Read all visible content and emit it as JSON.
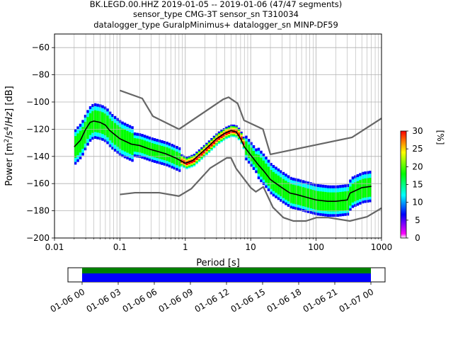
{
  "figure": {
    "title_lines": [
      "BK.LEGD.00.HHZ   2019-01-05 -- 2019-01-06  (47/47 segments)",
      "sensor_type CMG-3T sensor_sn T310034",
      "datalogger_type GuralpMinimus+ datalogger_sn MINP-DF59"
    ]
  },
  "chart_data": [
    {
      "type": "heatmap",
      "title": "BK.LEGD.00.HHZ   2019-01-05 -- 2019-01-06  (47/47 segments)",
      "xlabel": "Period [s]",
      "ylabel": "Power [m²/s⁴/Hz] [dB]",
      "x_scale": "log",
      "xlim": [
        0.01,
        1000
      ],
      "ylim": [
        -200,
        -50
      ],
      "x_ticks": [
        0.01,
        0.1,
        1,
        10,
        100,
        1000
      ],
      "x_tick_labels": [
        "0.01",
        "0.1",
        "1",
        "10",
        "100",
        "1000"
      ],
      "y_ticks": [
        -200,
        -180,
        -160,
        -140,
        -120,
        -100,
        -80,
        -60
      ],
      "y_tick_labels": [
        "−200",
        "−180",
        "−160",
        "−140",
        "−120",
        "−100",
        "−80",
        "−60"
      ],
      "grid": true,
      "colorbar": {
        "label": "[%]",
        "range": [
          0,
          30
        ],
        "ticks": [
          0,
          5,
          10,
          15,
          20,
          25,
          30
        ],
        "tick_labels": [
          "0",
          "5",
          "10",
          "15",
          "20",
          "25",
          "30"
        ],
        "colors": [
          "#ffffff",
          "#ff00ff",
          "#0000ff",
          "#00ffff",
          "#00ff00",
          "#ffff00",
          "#ff8000",
          "#ff0000"
        ]
      },
      "series": [
        {
          "role": "mean",
          "color": "#000000",
          "points": [
            [
              0.02,
              -133
            ],
            [
              0.025,
              -128
            ],
            [
              0.03,
              -120
            ],
            [
              0.035,
              -115
            ],
            [
              0.04,
              -114
            ],
            [
              0.05,
              -115
            ],
            [
              0.06,
              -117
            ],
            [
              0.07,
              -121
            ],
            [
              0.1,
              -127
            ],
            [
              0.15,
              -131
            ],
            [
              0.2,
              -132
            ],
            [
              0.3,
              -135
            ],
            [
              0.5,
              -138
            ],
            [
              0.7,
              -141
            ],
            [
              1.0,
              -145
            ],
            [
              1.3,
              -143
            ],
            [
              2,
              -135
            ],
            [
              3,
              -127
            ],
            [
              4,
              -123
            ],
            [
              5,
              -121
            ],
            [
              6,
              -122
            ],
            [
              7,
              -127
            ],
            [
              8,
              -133
            ],
            [
              10,
              -139
            ],
            [
              13,
              -146
            ],
            [
              16,
              -151
            ],
            [
              20,
              -157
            ],
            [
              30,
              -163
            ],
            [
              40,
              -167
            ],
            [
              50,
              -168
            ],
            [
              70,
              -170
            ],
            [
              100,
              -172
            ],
            [
              150,
              -173
            ],
            [
              200,
              -173
            ],
            [
              300,
              -172
            ],
            [
              330,
              -167
            ],
            [
              500,
              -163
            ],
            [
              700,
              -162
            ]
          ]
        },
        {
          "role": "noise_model_high",
          "color": "#666666",
          "points": [
            [
              0.1,
              -91.5
            ],
            [
              0.22,
              -97.4
            ],
            [
              0.32,
              -110.5
            ],
            [
              0.8,
              -120
            ],
            [
              3.8,
              -98
            ],
            [
              4.6,
              -96.5
            ],
            [
              6.3,
              -101
            ],
            [
              7.9,
              -113.5
            ],
            [
              15.4,
              -120
            ],
            [
              20,
              -138.5
            ],
            [
              354,
              -126
            ],
            [
              1000,
              -112
            ]
          ]
        },
        {
          "role": "noise_model_low",
          "color": "#666666",
          "points": [
            [
              0.1,
              -168
            ],
            [
              0.17,
              -166.7
            ],
            [
              0.4,
              -166.7
            ],
            [
              0.8,
              -169.2
            ],
            [
              1.24,
              -163.7
            ],
            [
              2.4,
              -148.6
            ],
            [
              4.3,
              -141.1
            ],
            [
              5,
              -141.1
            ],
            [
              6,
              -149
            ],
            [
              10,
              -163
            ],
            [
              12,
              -166
            ],
            [
              15.6,
              -162.4
            ],
            [
              21.9,
              -177.5
            ],
            [
              31.6,
              -185
            ],
            [
              45,
              -187.5
            ],
            [
              70,
              -187.5
            ],
            [
              101,
              -185
            ],
            [
              154,
              -185
            ],
            [
              328,
              -187.5
            ],
            [
              600,
              -184.4
            ],
            [
              1000,
              -178
            ]
          ]
        }
      ]
    },
    {
      "type": "timeline",
      "tick_labels": [
        "01-06 00",
        "01-06 03",
        "01-06 06",
        "01-06 09",
        "01-06 12",
        "01-06 15",
        "01-06 18",
        "01-06 21",
        "01-07 00"
      ],
      "coverage_start": "01-06 00",
      "coverage_end": "01-07 00",
      "colors": {
        "used": "#0000ff",
        "available": "#008000"
      }
    }
  ]
}
